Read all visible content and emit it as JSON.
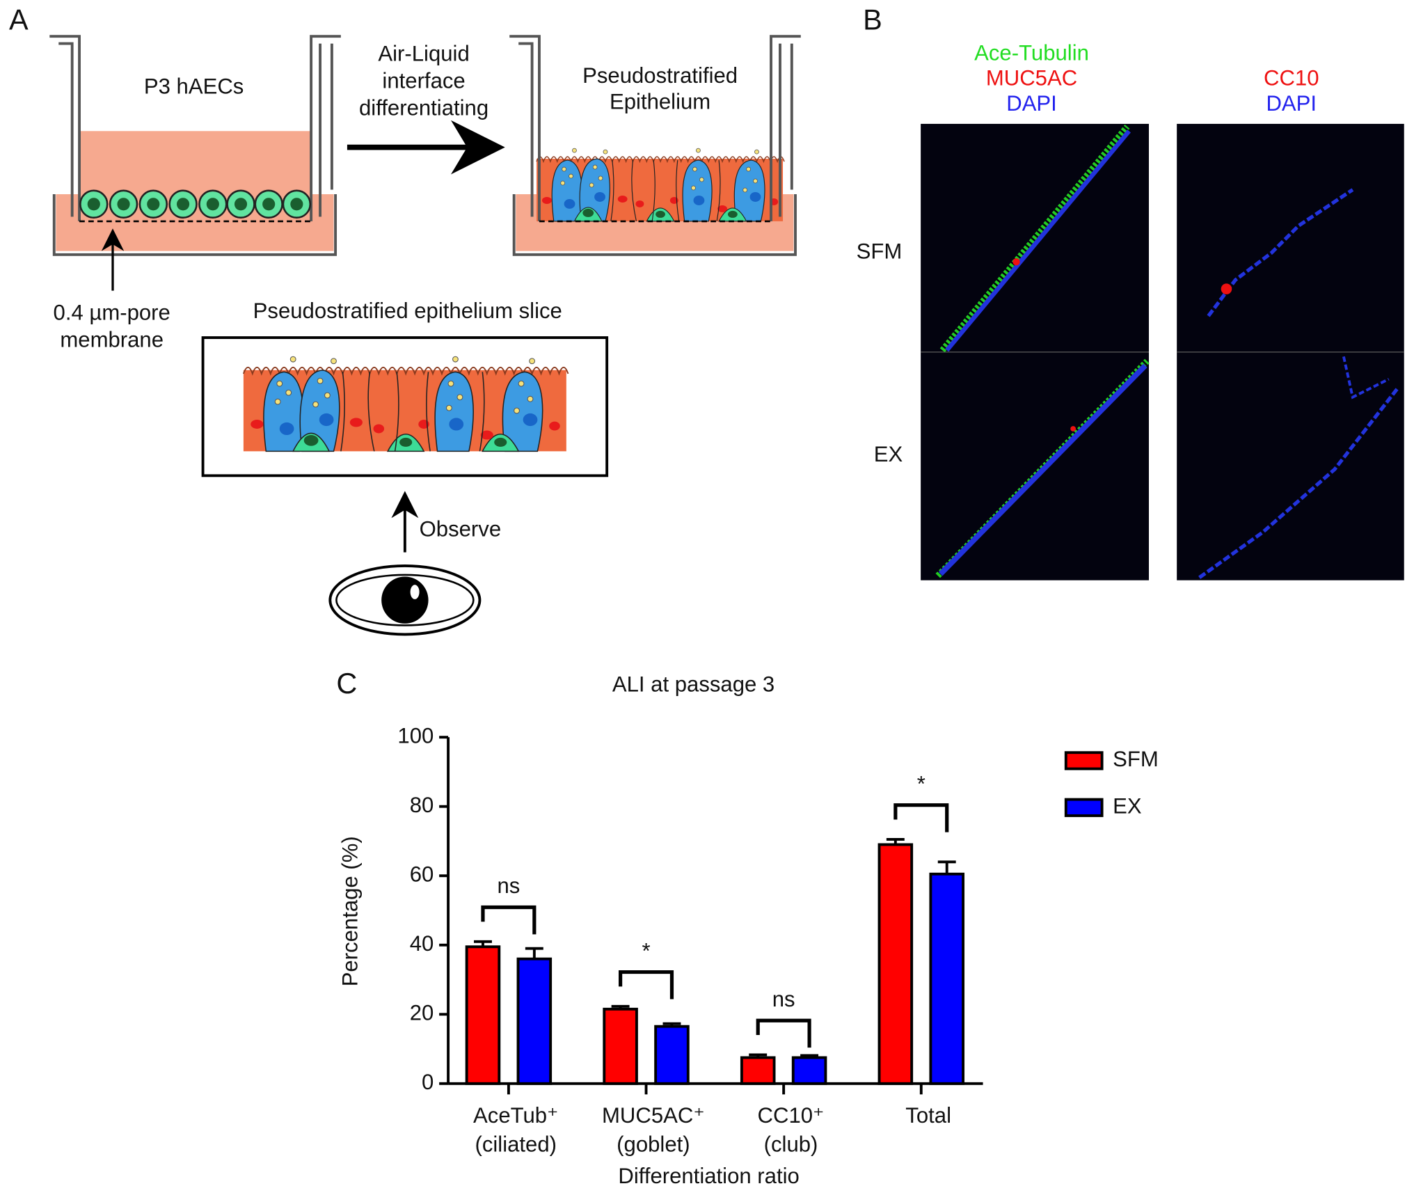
{
  "panel_labels": [
    "A",
    "B",
    "C"
  ],
  "diagram": {
    "well_left_label": "P3 hAECs",
    "arrow_label": [
      "Air-Liquid",
      "interface",
      "differentiating"
    ],
    "well_right_label": [
      "Pseudostratified",
      "Epithelium"
    ],
    "membrane_label": [
      "0.4 µm-pore",
      "membrane"
    ],
    "slice_label": "Pseudostratified epithelium slice",
    "observe_label": "Observe"
  },
  "microscopy": {
    "left_stains": [
      {
        "text": "Ace-Tubulin",
        "color": "#22dd22"
      },
      {
        "text": "MUC5AC",
        "color": "#ee1111"
      },
      {
        "text": "DAPI",
        "color": "#2222ee"
      }
    ],
    "right_stains": [
      {
        "text": "CC10",
        "color": "#ee1111"
      },
      {
        "text": "DAPI",
        "color": "#2222ee"
      }
    ],
    "rows": [
      "SFM",
      "EX"
    ]
  },
  "chart_data": {
    "type": "bar",
    "title": "ALI at passage 3",
    "x_label": "Differentiation ratio",
    "y_label": "Percentage (%)",
    "categories": [
      [
        "AceTub⁺",
        "(ciliated)"
      ],
      [
        "MUC5AC⁺",
        "(goblet)"
      ],
      [
        "CC10⁺",
        "(club)"
      ],
      [
        "Total"
      ]
    ],
    "series": [
      {
        "name": "SFM",
        "color": "#ff0000",
        "values": [
          39.5,
          21.5,
          7.5,
          69
        ],
        "errors": [
          1.5,
          0.8,
          0.8,
          1.5
        ]
      },
      {
        "name": "EX",
        "color": "#0000ff",
        "values": [
          36,
          16.5,
          7.5,
          60.5
        ],
        "errors": [
          3,
          0.8,
          0.6,
          3.5
        ]
      }
    ],
    "significance": [
      "ns",
      "*",
      "ns",
      "*"
    ],
    "ylim": [
      0,
      100
    ],
    "yticks": [
      0,
      20,
      40,
      60,
      80,
      100
    ],
    "legend": "right"
  }
}
